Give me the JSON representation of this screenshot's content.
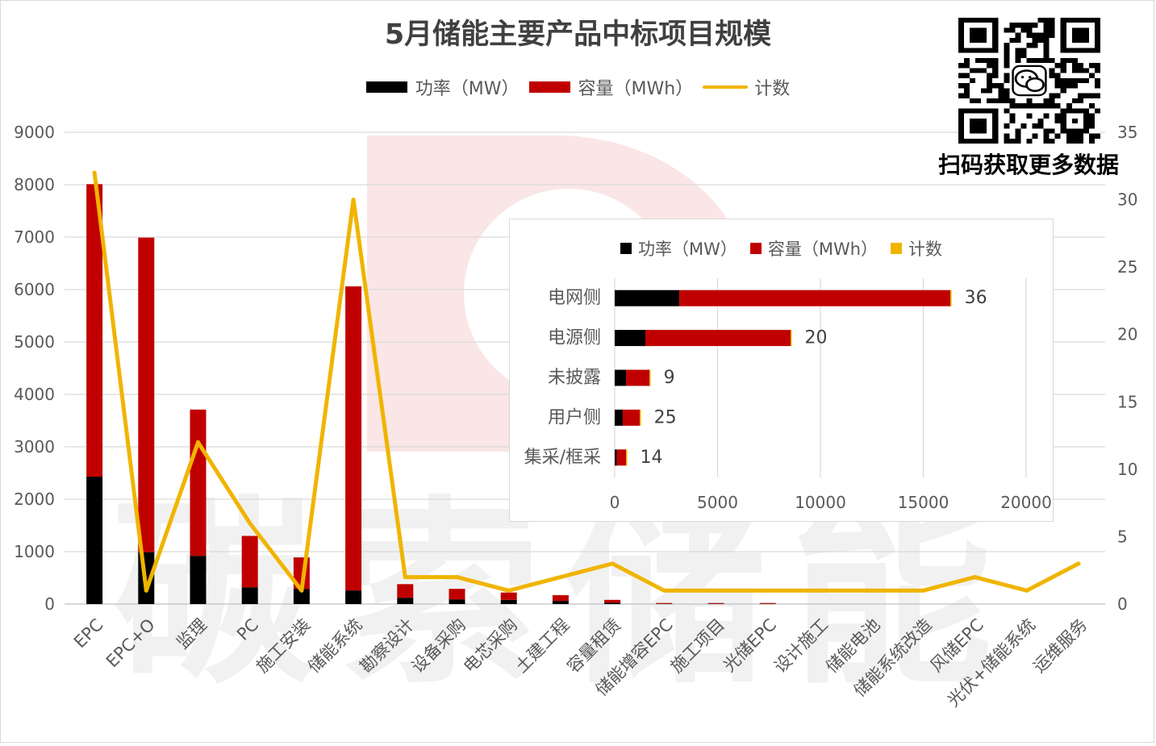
{
  "chart_data": [
    {
      "type": "bar",
      "stacked": true,
      "title": "5月储能主要产品中标项目规模",
      "legend_position": "top",
      "grid": true,
      "categories": [
        "EPC",
        "EPC+O",
        "监理",
        "PC",
        "施工安装",
        "储能系统",
        "勘察设计",
        "设备采购",
        "电芯采购",
        "土建工程",
        "容量租赁",
        "储能增容EPC",
        "施工项目",
        "光储EPC",
        "设计施工",
        "储能电池",
        "储能系统改造",
        "风储EPC",
        "光伏+储能系统",
        "运维服务"
      ],
      "series": [
        {
          "name": "功率（MW）",
          "type": "bar",
          "axis": "left",
          "color": "#000000",
          "values": [
            2430,
            990,
            920,
            320,
            290,
            260,
            120,
            90,
            80,
            60,
            25,
            5,
            5,
            5,
            0,
            0,
            0,
            0,
            0,
            0
          ]
        },
        {
          "name": "容量（MWh）",
          "type": "bar",
          "axis": "left",
          "color": "#c00000",
          "values": [
            5580,
            6000,
            2790,
            980,
            600,
            5800,
            260,
            200,
            140,
            110,
            55,
            15,
            15,
            15,
            0,
            0,
            0,
            0,
            0,
            0
          ]
        },
        {
          "name": "计数",
          "type": "line",
          "axis": "right",
          "color": "#f0b400",
          "values": [
            32,
            1,
            12,
            6,
            1,
            30,
            2,
            2,
            1,
            2,
            3,
            1,
            1,
            1,
            1,
            1,
            1,
            2,
            1,
            3
          ]
        }
      ],
      "ylim": [
        0,
        9000
      ],
      "y_ticks": [
        0,
        1000,
        2000,
        3000,
        4000,
        5000,
        6000,
        7000,
        8000,
        9000
      ],
      "y2lim": [
        0,
        35
      ],
      "y2_ticks": [
        0,
        5,
        10,
        15,
        20,
        25,
        30,
        35
      ]
    },
    {
      "type": "bar",
      "orientation": "horizontal",
      "stacked": true,
      "legend_position": "top",
      "grid": true,
      "categories": [
        "电网侧",
        "电源侧",
        "未披露",
        "用户侧",
        "集采/框采"
      ],
      "series": [
        {
          "name": "功率（MW）",
          "color": "#000000",
          "values": [
            3140,
            1490,
            550,
            390,
            100
          ]
        },
        {
          "name": "容量（MWh）",
          "color": "#c00000",
          "values": [
            13180,
            7060,
            1140,
            830,
            450
          ]
        },
        {
          "name": "计数",
          "color": "#f0b400",
          "values": [
            36,
            20,
            9,
            25,
            14
          ],
          "data_labels": true
        }
      ],
      "xlim": [
        0,
        20000
      ],
      "x_ticks": [
        0,
        5000,
        10000,
        15000,
        20000
      ]
    }
  ],
  "qr": {
    "caption": "扫码获取更多数据",
    "icon": "wechat-icon"
  },
  "watermark": {
    "text": "碳索储能",
    "logo_color": "#dc3c3c"
  }
}
